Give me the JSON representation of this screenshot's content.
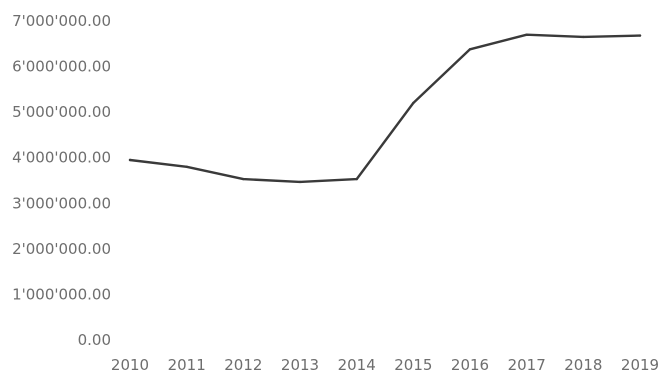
{
  "chart_data": {
    "type": "line",
    "title": "",
    "xlabel": "",
    "ylabel": "",
    "x": [
      "2010",
      "2011",
      "2012",
      "2013",
      "2014",
      "2015",
      "2016",
      "2017",
      "2018",
      "2019"
    ],
    "series": [
      {
        "values": [
          3950000,
          3800000,
          3530000,
          3470000,
          3530000,
          5200000,
          6380000,
          6700000,
          6650000,
          6680000
        ]
      }
    ],
    "yticks": [
      "0.00",
      "1'000'000.00",
      "2'000'000.00",
      "3'000'000.00",
      "4'000'000.00",
      "5'000'000.00",
      "6'000'000.00",
      "7'000'000.00"
    ],
    "ylim": [
      0,
      7000000
    ],
    "grid": false,
    "legend": "none",
    "line_color": "#3a3a3a"
  }
}
